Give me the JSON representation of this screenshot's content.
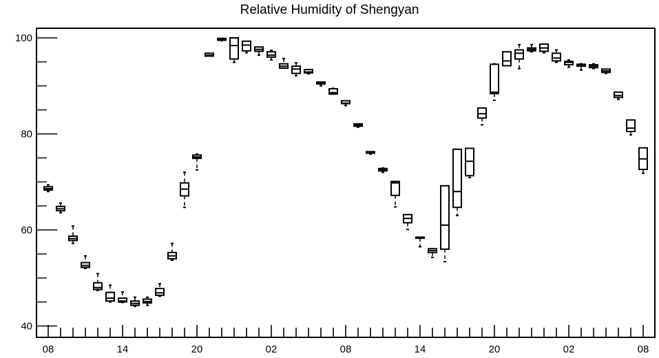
{
  "chart_data": {
    "type": "box",
    "title": "Relative Humidity of Shengyan",
    "xlabel": "",
    "ylabel": "",
    "ylim": [
      38,
      102.5
    ],
    "grid": false,
    "yticks_major": [
      40,
      60,
      80,
      100
    ],
    "yticks_major_labels": [
      "40",
      "60",
      "80",
      "100"
    ],
    "yticks_minor": [
      45,
      50,
      55,
      65,
      70,
      75,
      85,
      90,
      95
    ],
    "xticks_labels": [
      "08",
      "14",
      "20",
      "02",
      "08",
      "14",
      "20",
      "02",
      "08"
    ],
    "xticks_label_positions": [
      0,
      6,
      12,
      18,
      24,
      30,
      36,
      42,
      48
    ],
    "x_minor_ticks": [
      0,
      48
    ],
    "boxes": [
      {
        "x": 0,
        "whisker_low": 68.0,
        "q1": 68.3,
        "median": 68.6,
        "q3": 69.0,
        "whisker_high": 69.4
      },
      {
        "x": 1,
        "whisker_low": 63.6,
        "q1": 64.0,
        "median": 64.4,
        "q3": 64.9,
        "whisker_high": 65.6
      },
      {
        "x": 2,
        "whisker_low": 57.2,
        "q1": 57.8,
        "median": 58.2,
        "q3": 58.7,
        "whisker_high": 60.8
      },
      {
        "x": 3,
        "whisker_low": 52.0,
        "q1": 52.2,
        "median": 52.6,
        "q3": 53.2,
        "whisker_high": 54.6
      },
      {
        "x": 4,
        "whisker_low": 47.4,
        "q1": 47.6,
        "median": 48.0,
        "q3": 49.0,
        "whisker_high": 50.9
      },
      {
        "x": 5,
        "whisker_low": 45.0,
        "q1": 45.2,
        "median": 45.8,
        "q3": 47.0,
        "whisker_high": 48.5
      },
      {
        "x": 6,
        "whisker_low": 44.9,
        "q1": 45.0,
        "median": 45.2,
        "q3": 45.8,
        "whisker_high": 47.1
      },
      {
        "x": 7,
        "whisker_low": 44.1,
        "q1": 44.3,
        "median": 44.7,
        "q3": 45.2,
        "whisker_high": 46.0
      },
      {
        "x": 8,
        "whisker_low": 44.3,
        "q1": 44.8,
        "median": 45.1,
        "q3": 45.6,
        "whisker_high": 46.0
      },
      {
        "x": 9,
        "whisker_low": 46.2,
        "q1": 46.4,
        "median": 46.9,
        "q3": 47.8,
        "whisker_high": 48.8
      },
      {
        "x": 10,
        "whisker_low": 53.7,
        "q1": 54.0,
        "median": 54.6,
        "q3": 55.3,
        "whisker_high": 57.2
      },
      {
        "x": 11,
        "whisker_low": 64.7,
        "q1": 67.1,
        "median": 68.5,
        "q3": 69.8,
        "whisker_high": 72.0
      },
      {
        "x": 12,
        "whisker_low": 72.5,
        "q1": 74.9,
        "median": 75.2,
        "q3": 75.6,
        "whisker_high": 75.8
      },
      {
        "x": 13,
        "whisker_low": 96.2,
        "q1": 96.2,
        "median": 96.4,
        "q3": 96.8,
        "whisker_high": 96.8
      },
      {
        "x": 14,
        "whisker_low": 99.4,
        "q1": 99.5,
        "median": 99.7,
        "q3": 99.9,
        "whisker_high": 99.9
      },
      {
        "x": 15,
        "whisker_low": 94.9,
        "q1": 95.6,
        "median": 98.4,
        "q3": 100.0,
        "whisker_high": 100.0
      },
      {
        "x": 16,
        "whisker_low": 96.9,
        "q1": 97.3,
        "median": 98.5,
        "q3": 99.3,
        "whisker_high": 99.3
      },
      {
        "x": 17,
        "whisker_low": 96.4,
        "q1": 97.2,
        "median": 97.6,
        "q3": 98.1,
        "whisker_high": 98.1
      },
      {
        "x": 18,
        "whisker_low": 95.4,
        "q1": 96.0,
        "median": 96.4,
        "q3": 97.1,
        "whisker_high": 97.4
      },
      {
        "x": 19,
        "whisker_low": 93.7,
        "q1": 93.7,
        "median": 94.1,
        "q3": 94.6,
        "whisker_high": 95.7
      },
      {
        "x": 20,
        "whisker_low": 92.1,
        "q1": 92.6,
        "median": 93.5,
        "q3": 94.1,
        "whisker_high": 94.8
      },
      {
        "x": 21,
        "whisker_low": 92.5,
        "q1": 92.7,
        "median": 92.9,
        "q3": 93.4,
        "whisker_high": 93.4
      },
      {
        "x": 22,
        "whisker_low": 90.0,
        "q1": 90.4,
        "median": 90.6,
        "q3": 90.8,
        "whisker_high": 90.8
      },
      {
        "x": 23,
        "whisker_low": 88.3,
        "q1": 88.3,
        "median": 88.6,
        "q3": 89.4,
        "whisker_high": 89.5
      },
      {
        "x": 24,
        "whisker_low": 85.9,
        "q1": 86.3,
        "median": 86.4,
        "q3": 86.9,
        "whisker_high": 86.9
      },
      {
        "x": 25,
        "whisker_low": 81.4,
        "q1": 81.6,
        "median": 81.8,
        "q3": 82.1,
        "whisker_high": 82.1
      },
      {
        "x": 26,
        "whisker_low": 75.8,
        "q1": 76.0,
        "median": 76.1,
        "q3": 76.3,
        "whisker_high": 76.3
      },
      {
        "x": 27,
        "whisker_low": 72.0,
        "q1": 72.3,
        "median": 72.5,
        "q3": 72.8,
        "whisker_high": 72.9
      },
      {
        "x": 28,
        "whisker_low": 64.8,
        "q1": 67.2,
        "median": 69.8,
        "q3": 70.1,
        "whisker_high": 70.1
      },
      {
        "x": 29,
        "whisker_low": 60.1,
        "q1": 61.5,
        "median": 62.4,
        "q3": 63.2,
        "whisker_high": 63.2
      },
      {
        "x": 30,
        "whisker_low": 56.5,
        "q1": 58.3,
        "median": 58.4,
        "q3": 58.5,
        "whisker_high": 58.5
      },
      {
        "x": 31,
        "whisker_low": 54.3,
        "q1": 55.3,
        "median": 55.7,
        "q3": 56.1,
        "whisker_high": 56.1
      },
      {
        "x": 32,
        "whisker_low": 53.4,
        "q1": 56.0,
        "median": 61.0,
        "q3": 69.2,
        "whisker_high": 69.2
      },
      {
        "x": 33,
        "whisker_low": 63.0,
        "q1": 64.7,
        "median": 68.0,
        "q3": 76.8,
        "whisker_high": 76.8
      },
      {
        "x": 34,
        "whisker_low": 70.9,
        "q1": 71.3,
        "median": 74.3,
        "q3": 77.0,
        "whisker_high": 77.0
      },
      {
        "x": 35,
        "whisker_low": 81.9,
        "q1": 83.3,
        "median": 84.2,
        "q3": 85.4,
        "whisker_high": 85.4
      },
      {
        "x": 36,
        "whisker_low": 87.0,
        "q1": 88.4,
        "median": 88.7,
        "q3": 94.5,
        "whisker_high": 94.6
      },
      {
        "x": 37,
        "whisker_low": 94.2,
        "q1": 94.2,
        "median": 95.2,
        "q3": 97.1,
        "whisker_high": 97.1
      },
      {
        "x": 38,
        "whisker_low": 93.6,
        "q1": 95.6,
        "median": 96.8,
        "q3": 97.5,
        "whisker_high": 98.6
      },
      {
        "x": 39,
        "whisker_low": 97.1,
        "q1": 97.3,
        "median": 97.6,
        "q3": 97.9,
        "whisker_high": 98.6
      },
      {
        "x": 40,
        "whisker_low": 96.9,
        "q1": 97.2,
        "median": 97.9,
        "q3": 98.7,
        "whisker_high": 98.7
      },
      {
        "x": 41,
        "whisker_low": 94.9,
        "q1": 95.2,
        "median": 95.8,
        "q3": 96.8,
        "whisker_high": 97.5
      },
      {
        "x": 42,
        "whisker_low": 93.9,
        "q1": 94.4,
        "median": 94.9,
        "q3": 95.1,
        "whisker_high": 95.4
      },
      {
        "x": 43,
        "whisker_low": 93.3,
        "q1": 94.1,
        "median": 94.3,
        "q3": 94.5,
        "whisker_high": 94.6
      },
      {
        "x": 44,
        "whisker_low": 93.6,
        "q1": 93.8,
        "median": 94.1,
        "q3": 94.4,
        "whisker_high": 94.6
      },
      {
        "x": 45,
        "whisker_low": 92.6,
        "q1": 92.8,
        "median": 93.1,
        "q3": 93.5,
        "whisker_high": 93.5
      },
      {
        "x": 46,
        "whisker_low": 87.2,
        "q1": 87.6,
        "median": 88.0,
        "q3": 88.7,
        "whisker_high": 88.7
      },
      {
        "x": 47,
        "whisker_low": 79.8,
        "q1": 80.5,
        "median": 81.2,
        "q3": 82.9,
        "whisker_high": 82.9
      },
      {
        "x": 48,
        "whisker_low": 71.8,
        "q1": 72.6,
        "median": 74.8,
        "q3": 77.1,
        "whisker_high": 77.1
      }
    ]
  }
}
